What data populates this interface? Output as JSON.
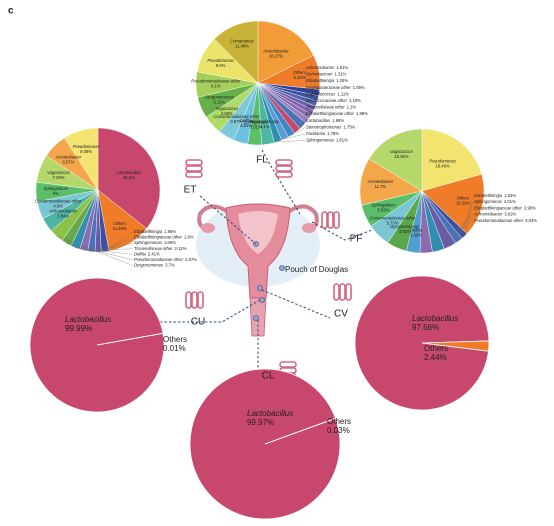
{
  "panel_label": "c",
  "annotation": "Pouch of Douglas",
  "chart_data": [
    {
      "type": "pie",
      "title": "ET",
      "categories": [
        "Lactobacillus",
        "Others",
        "Elizabethkingia",
        "Elizabethkingiaceae other",
        "Sphingomonas",
        "Tissierellaceae other",
        "Delftia",
        "Pseudomonadaceae other",
        "Dysgonomonas",
        "Achromobacter",
        "Comamonadaceae other",
        "Sphingobium",
        "Vagococcus",
        "Acinetobacter",
        "Pseudomonas"
      ],
      "values": [
        35.6,
        11.49,
        1.98,
        1.6,
        1.86,
        2.12,
        2.41,
        2.67,
        3.7,
        3.84,
        4.6,
        5,
        7.29,
        6.57,
        9.08
      ],
      "value_labels": [
        "35.6%",
        "11.49%",
        "1.98%",
        "1.6%",
        "1.86%",
        "2.12%",
        "2.41%",
        "2.67%",
        "3.7%",
        "3.84%",
        "4.6%",
        "5%",
        "7.29%",
        "6.57%",
        "9.08%"
      ],
      "colors": [
        "#c8476d",
        "#f07c2a",
        "#3c4fa0",
        "#6a5aa8",
        "#4a73b8",
        "#8c6bb1",
        "#2e8fb0",
        "#67a84a",
        "#8bc34a",
        "#4fb6a4",
        "#79c7d4",
        "#5bbf6a",
        "#b5d86b",
        "#f4a64a",
        "#f2e46e"
      ]
    },
    {
      "type": "pie",
      "title": "FL",
      "categories": [
        "Acinetobacter",
        "Others",
        "Achromobacter",
        "Ochrobactrum",
        "Elizabethkingia",
        "Oxalobacteraceae other",
        "Staphylococcus",
        "Micrococcaceae other",
        "Tissierellaceae other",
        "Elizabethkingiaceae other",
        "Lactobacillus",
        "Stenotrophomonas",
        "Facklamia",
        "Sphingomonas",
        "Brevundimonas",
        "Sphingobium",
        "Delftia",
        "Comamonadaceae other",
        "Vagococcus",
        "Dysgonomonas",
        "Pseudomonadaceae other",
        "Pseudomonas",
        "Comamonas"
      ],
      "values": [
        16.27,
        8.33,
        1.51,
        1.31,
        1.28,
        1.09,
        1.11,
        1.18,
        1.2,
        1.88,
        1.69,
        1.75,
        1.78,
        1.81,
        3.1,
        3.31,
        3.51,
        3.87,
        4.69,
        5.11,
        6.1,
        8.9,
        11.48
      ],
      "value_labels": [
        "16.27%",
        "8.33%",
        "1.51%",
        "1.31%",
        "1.28%",
        "1.09%",
        "1.11%",
        "1.18%",
        "1.2%",
        "1.88%",
        "1.69%",
        "1.75%",
        "1.78%",
        "1.81%",
        "3.1%",
        "3.31%",
        "3.51%",
        "3.87%",
        "4.69%",
        "5.11%",
        "6.1%",
        "8.9%",
        "11.48%"
      ],
      "colors": [
        "#f29c38",
        "#f07c2a",
        "#2b3f93",
        "#3c4fa0",
        "#5063b0",
        "#6a5aa8",
        "#7b62ad",
        "#8c6bb1",
        "#9b7fc0",
        "#4a73b8",
        "#c8476d",
        "#3f86c4",
        "#5a9bd0",
        "#2e8fb0",
        "#4fb6a4",
        "#5bbf6a",
        "#6cc1e0",
        "#7ec8d8",
        "#aedb6a",
        "#66b04a",
        "#a4cf5a",
        "#ece36a",
        "#c8b238"
      ]
    },
    {
      "type": "pie",
      "title": "PF",
      "categories": [
        "Pseudomonas",
        "Others",
        "Elizabethkingia",
        "Sphingomonas",
        "Elizabethkingiaceae other",
        "Achromobacter",
        "Pseudomonadaceae other",
        "Delftia",
        "Dysgonomonas",
        "Comamonadaceae other",
        "Sphingobium",
        "Acinetobacter",
        "Vagococcus"
      ],
      "values": [
        19.48,
        15.52,
        1.63,
        2.01,
        2.98,
        3.02,
        3.04,
        3.36,
        4.92,
        5.73,
        5.62,
        11.7,
        15.36
      ],
      "value_labels": [
        "19.48%",
        "15.52%",
        "1.63%",
        "2.01%",
        "2.98%",
        "3.02%",
        "3.04%",
        "3.36%",
        "4.92%",
        "5.73%",
        "5.62%",
        "11.7%",
        "15.36%"
      ],
      "colors": [
        "#f2e46e",
        "#f07c2a",
        "#3c4fa0",
        "#4a73b8",
        "#6a5aa8",
        "#2e8fb0",
        "#8c6bb1",
        "#4fa0d0",
        "#5aa84a",
        "#79c7d4",
        "#5bbf6a",
        "#f4a64a",
        "#b5d86b"
      ]
    },
    {
      "type": "pie",
      "title": "CU",
      "categories": [
        "Lactobacillus",
        "Others"
      ],
      "values": [
        99.99,
        0.01
      ],
      "value_labels": [
        "99.99%",
        "0.01%"
      ],
      "colors": [
        "#c8476d",
        "#f07c2a"
      ]
    },
    {
      "type": "pie",
      "title": "CV",
      "categories": [
        "Lactobacillus",
        "Others"
      ],
      "values": [
        97.56,
        2.44
      ],
      "value_labels": [
        "97.56%",
        "2.44%"
      ],
      "colors": [
        "#c8476d",
        "#f07c2a"
      ]
    },
    {
      "type": "pie",
      "title": "CL",
      "categories": [
        "Lactobacillus",
        "Others"
      ],
      "values": [
        99.97,
        0.03
      ],
      "value_labels": [
        "99.97%",
        "0.03%"
      ],
      "colors": [
        "#c8476d",
        "#f07c2a"
      ]
    }
  ]
}
